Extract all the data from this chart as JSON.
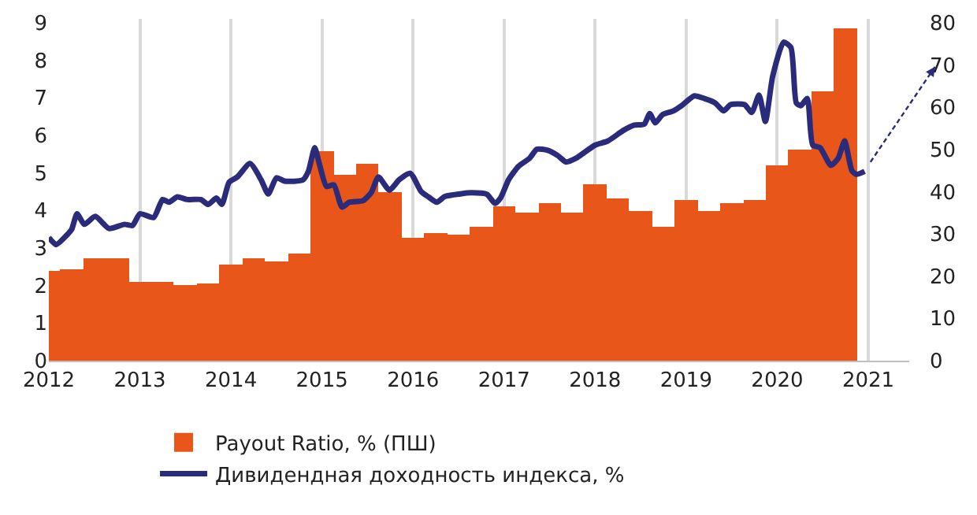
{
  "chart_data": {
    "type": "line",
    "series": [
      {
        "name": "Payout Ratio, % (ПШ)",
        "type": "bar",
        "axis": "y2",
        "color": "#e8561a",
        "x": [
          2012.0,
          2012.25,
          2012.5,
          2012.75,
          2013.0,
          2013.25,
          2013.5,
          2013.75,
          2014.0,
          2014.25,
          2014.5,
          2014.75,
          2015.0,
          2015.25,
          2015.5,
          2015.75,
          2016.0,
          2016.25,
          2016.5,
          2016.75,
          2017.0,
          2017.25,
          2017.5,
          2017.75,
          2018.0,
          2018.25,
          2018.5,
          2018.75,
          2019.0,
          2019.25,
          2019.5,
          2019.75,
          2020.0,
          2020.25,
          2020.5,
          2020.75
        ],
        "values": [
          21.4,
          21.6,
          24.1,
          24.1,
          18.8,
          18.8,
          17.9,
          18.3,
          22.6,
          24.1,
          23.5,
          25.4,
          49.4,
          44.1,
          46.5,
          39.8,
          28.9,
          30.1,
          29.8,
          31.6,
          36.4,
          35,
          37.3,
          35,
          41.6,
          38.3,
          35.4,
          31.6,
          37.9,
          35.4,
          37.3,
          37.9,
          46.4,
          50.1,
          63.9,
          78.8
        ]
      },
      {
        "name": "Дивидендная доходность индекса, %",
        "axis": "y",
        "color": "#2b2b7c",
        "x": [
          2012.0,
          2012.08,
          2012.2,
          2012.25,
          2012.31,
          2012.39,
          2012.51,
          2012.66,
          2012.83,
          2012.92,
          2013.0,
          2013.15,
          2013.25,
          2013.32,
          2013.41,
          2013.52,
          2013.67,
          2013.75,
          2013.84,
          2013.9,
          2013.98,
          2014.07,
          2014.21,
          2014.33,
          2014.41,
          2014.5,
          2014.59,
          2014.79,
          2014.85,
          2014.92,
          2014.97,
          2015.05,
          2015.13,
          2015.22,
          2015.3,
          2015.45,
          2015.54,
          2015.62,
          2015.74,
          2015.85,
          2015.97,
          2016.09,
          2016.17,
          2016.26,
          2016.35,
          2016.52,
          2016.63,
          2016.81,
          2016.9,
          2016.96,
          2017.05,
          2017.16,
          2017.28,
          2017.36,
          2017.48,
          2017.59,
          2017.68,
          2017.79,
          2018.0,
          2018.14,
          2018.31,
          2018.43,
          2018.54,
          2018.6,
          2018.66,
          2018.74,
          2018.86,
          2018.95,
          2019.09,
          2019.2,
          2019.32,
          2019.41,
          2019.49,
          2019.64,
          2019.72,
          2019.8,
          2019.87,
          2019.95,
          2020.07,
          2020.15,
          2020.21,
          2020.26,
          2020.33,
          2020.39,
          2020.47,
          2020.59,
          2020.67,
          2020.74,
          2020.82,
          2020.87,
          2020.96
        ],
        "values": [
          3.28,
          3.09,
          3.35,
          3.49,
          3.91,
          3.63,
          3.84,
          3.52,
          3.63,
          3.6,
          3.91,
          3.81,
          4.29,
          4.22,
          4.36,
          4.29,
          4.29,
          4.16,
          4.33,
          4.16,
          4.75,
          4.89,
          5.25,
          4.82,
          4.44,
          4.87,
          4.78,
          4.81,
          5.04,
          5.67,
          5.25,
          4.64,
          4.68,
          4.09,
          4.22,
          4.26,
          4.47,
          4.89,
          4.54,
          4.82,
          4.99,
          4.5,
          4.36,
          4.22,
          4.37,
          4.44,
          4.47,
          4.43,
          4.19,
          4.33,
          4.82,
          5.18,
          5.39,
          5.63,
          5.6,
          5.46,
          5.29,
          5.39,
          5.74,
          5.85,
          6.13,
          6.27,
          6.3,
          6.58,
          6.33,
          6.55,
          6.65,
          6.79,
          7.05,
          6.98,
          6.86,
          6.65,
          6.82,
          6.82,
          6.61,
          7.07,
          6.37,
          7.57,
          8.48,
          8.34,
          6.86,
          6.79,
          6.98,
          5.74,
          5.67,
          5.2,
          5.39,
          5.85,
          5.06,
          4.96,
          5.04
        ]
      }
    ],
    "xlim": [
      2012,
      2021.45
    ],
    "xticks": [
      2012,
      2013,
      2014,
      2015,
      2016,
      2017,
      2018,
      2019,
      2020,
      2021
    ],
    "ylim": [
      0,
      9.1
    ],
    "yticks": [
      0,
      1,
      2,
      3,
      4,
      5,
      6,
      7,
      8,
      9
    ],
    "y2lim": [
      0,
      80.9
    ],
    "y2ticks": [
      0,
      10,
      20,
      30,
      40,
      50,
      60,
      70,
      80
    ],
    "grid": "x",
    "legend": "bottom",
    "marker": "none",
    "line_style": "solid"
  }
}
